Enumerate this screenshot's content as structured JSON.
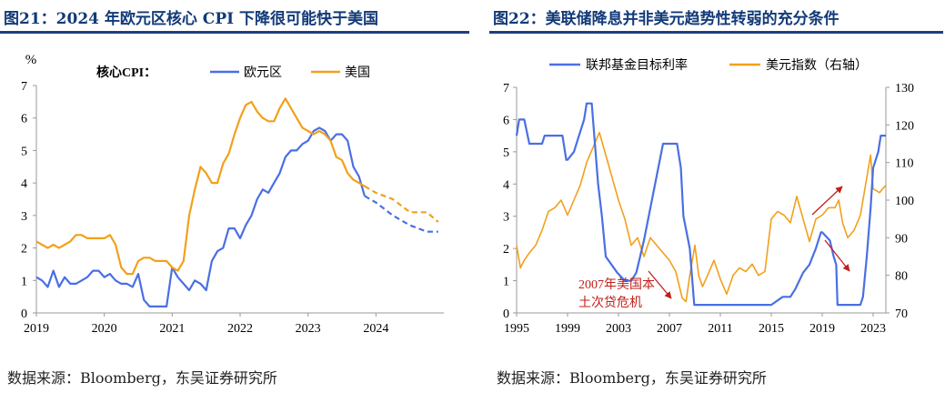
{
  "chart_data": [
    {
      "type": "line",
      "title": "图21：2024 年欧元区核心 CPI 下降很可能快于美国",
      "source": "数据来源：Bloomberg，东吴证券研究所",
      "ylabel": "%",
      "legend_title": "核心CPI：",
      "legend_position": "top",
      "ylim": [
        0,
        7
      ],
      "yticks": [
        "0",
        "1",
        "2",
        "3",
        "4",
        "5",
        "6",
        "7"
      ],
      "xlim": [
        2019,
        2025
      ],
      "xticks": [
        "2019",
        "2020",
        "2021",
        "2022",
        "2023",
        "2024"
      ],
      "grid": false,
      "series": [
        {
          "name": "欧元区",
          "color": "#4a6fe3",
          "x": [
            2019.0,
            2019.083,
            2019.167,
            2019.25,
            2019.333,
            2019.417,
            2019.5,
            2019.583,
            2019.667,
            2019.75,
            2019.833,
            2019.917,
            2020.0,
            2020.083,
            2020.167,
            2020.25,
            2020.333,
            2020.417,
            2020.5,
            2020.583,
            2020.667,
            2020.75,
            2020.833,
            2020.917,
            2021.0,
            2021.083,
            2021.167,
            2021.25,
            2021.333,
            2021.417,
            2021.5,
            2021.583,
            2021.667,
            2021.75,
            2021.833,
            2021.917,
            2022.0,
            2022.083,
            2022.167,
            2022.25,
            2022.333,
            2022.417,
            2022.5,
            2022.583,
            2022.667,
            2022.75,
            2022.833,
            2022.917,
            2023.0,
            2023.083,
            2023.167,
            2023.25,
            2023.333,
            2023.417,
            2023.5,
            2023.583,
            2023.667,
            2023.75,
            2023.833
          ],
          "values": [
            1.1,
            1.0,
            0.8,
            1.3,
            0.8,
            1.1,
            0.9,
            0.9,
            1.0,
            1.1,
            1.3,
            1.3,
            1.1,
            1.2,
            1.0,
            0.9,
            0.9,
            0.8,
            1.2,
            0.4,
            0.2,
            0.2,
            0.2,
            0.2,
            1.4,
            1.1,
            0.9,
            0.7,
            1.0,
            0.9,
            0.7,
            1.6,
            1.9,
            2.0,
            2.6,
            2.6,
            2.3,
            2.7,
            3.0,
            3.5,
            3.8,
            3.7,
            4.0,
            4.3,
            4.8,
            5.0,
            5.0,
            5.2,
            5.3,
            5.6,
            5.7,
            5.6,
            5.3,
            5.5,
            5.5,
            5.3,
            4.5,
            4.2,
            3.6
          ]
        },
        {
          "name": "美国",
          "color": "#f2a01c",
          "x": [
            2019.0,
            2019.083,
            2019.167,
            2019.25,
            2019.333,
            2019.417,
            2019.5,
            2019.583,
            2019.667,
            2019.75,
            2019.833,
            2019.917,
            2020.0,
            2020.083,
            2020.167,
            2020.25,
            2020.333,
            2020.417,
            2020.5,
            2020.583,
            2020.667,
            2020.75,
            2020.833,
            2020.917,
            2021.0,
            2021.083,
            2021.167,
            2021.25,
            2021.333,
            2021.417,
            2021.5,
            2021.583,
            2021.667,
            2021.75,
            2021.833,
            2021.917,
            2022.0,
            2022.083,
            2022.167,
            2022.25,
            2022.333,
            2022.417,
            2022.5,
            2022.583,
            2022.667,
            2022.75,
            2022.833,
            2022.917,
            2023.0,
            2023.083,
            2023.167,
            2023.25,
            2023.333,
            2023.417,
            2023.5,
            2023.583,
            2023.667,
            2023.75,
            2023.833
          ],
          "values": [
            2.2,
            2.1,
            2.0,
            2.1,
            2.0,
            2.1,
            2.2,
            2.4,
            2.4,
            2.3,
            2.3,
            2.3,
            2.3,
            2.4,
            2.1,
            1.4,
            1.2,
            1.2,
            1.6,
            1.7,
            1.7,
            1.6,
            1.6,
            1.6,
            1.4,
            1.3,
            1.6,
            3.0,
            3.8,
            4.5,
            4.3,
            4.0,
            4.0,
            4.6,
            4.9,
            5.5,
            6.0,
            6.4,
            6.5,
            6.2,
            6.0,
            5.9,
            5.9,
            6.3,
            6.6,
            6.3,
            6.0,
            5.7,
            5.6,
            5.5,
            5.6,
            5.5,
            5.3,
            4.8,
            4.7,
            4.3,
            4.1,
            4.0,
            3.9
          ]
        },
        {
          "name": "欧元区",
          "style": "dashed",
          "color": "#4a6fe3",
          "x": [
            2023.833,
            2024.0,
            2024.25,
            2024.5,
            2024.75,
            2024.917
          ],
          "values": [
            3.6,
            3.4,
            3.0,
            2.7,
            2.5,
            2.5
          ]
        },
        {
          "name": "美国",
          "style": "dashed",
          "color": "#f2a01c",
          "x": [
            2023.833,
            2024.0,
            2024.25,
            2024.5,
            2024.75,
            2024.917
          ],
          "values": [
            3.9,
            3.7,
            3.5,
            3.1,
            3.1,
            2.8
          ]
        }
      ]
    },
    {
      "type": "line",
      "title": "图22：美联储降息并非美元趋势性转弱的充分条件",
      "source": "数据来源：Bloomberg，东吴证券研究所",
      "legend_position": "top",
      "ylim": [
        0,
        7
      ],
      "yticks": [
        "0",
        "1",
        "2",
        "3",
        "4",
        "5",
        "6",
        "7"
      ],
      "y2lim": [
        70,
        130
      ],
      "y2ticks": [
        "70",
        "80",
        "90",
        "100",
        "110",
        "120",
        "130"
      ],
      "xlim": [
        1995,
        2024
      ],
      "xticks": [
        "1995",
        "1999",
        "2003",
        "2007",
        "2011",
        "2015",
        "2019",
        "2023"
      ],
      "grid": false,
      "annotation": [
        "2007年美国本",
        "土次贷危机"
      ],
      "series": [
        {
          "name": "联邦基金目标利率",
          "axis": "left",
          "color": "#4a6fe3",
          "x": [
            1995.0,
            1995.2,
            1995.6,
            1996.0,
            1997.0,
            1997.2,
            1998.0,
            1998.6,
            1998.9,
            1999.0,
            1999.5,
            1999.9,
            2000.3,
            2000.5,
            2000.9,
            2001.1,
            2001.4,
            2001.7,
            2002.0,
            2002.9,
            2003.5,
            2004.0,
            2004.4,
            2005.0,
            2005.5,
            2006.0,
            2006.5,
            2007.0,
            2007.6,
            2007.9,
            2008.1,
            2008.6,
            2008.95,
            2009.5,
            2011.0,
            2013.0,
            2015.0,
            2015.9,
            2016.5,
            2016.9,
            2017.5,
            2018.0,
            2018.5,
            2018.9,
            2019.0,
            2019.6,
            2019.9,
            2020.1,
            2020.2,
            2021.0,
            2022.0,
            2022.2,
            2022.5,
            2022.8,
            2023.0,
            2023.4,
            2023.6,
            2024.0
          ],
          "values": [
            5.5,
            6.0,
            6.0,
            5.25,
            5.25,
            5.5,
            5.5,
            5.5,
            4.75,
            4.75,
            5.0,
            5.5,
            6.0,
            6.5,
            6.5,
            5.5,
            4.0,
            3.0,
            1.75,
            1.25,
            1.0,
            1.0,
            1.25,
            2.25,
            3.25,
            4.25,
            5.25,
            5.25,
            5.25,
            4.5,
            3.0,
            2.0,
            0.25,
            0.25,
            0.25,
            0.25,
            0.25,
            0.5,
            0.5,
            0.75,
            1.25,
            1.5,
            2.0,
            2.5,
            2.5,
            2.25,
            1.75,
            1.5,
            0.25,
            0.25,
            0.25,
            0.5,
            1.75,
            3.25,
            4.5,
            5.0,
            5.5,
            5.5
          ]
        },
        {
          "name": "美元指数（右轴）",
          "axis": "right",
          "color": "#f2a01c",
          "x": [
            1995.0,
            1995.3,
            1995.6,
            1996.0,
            1996.5,
            1997.0,
            1997.5,
            1998.0,
            1998.5,
            1999.0,
            1999.5,
            2000.0,
            2000.5,
            2001.0,
            2001.5,
            2002.0,
            2002.5,
            2003.0,
            2003.5,
            2004.0,
            2004.5,
            2005.0,
            2005.5,
            2006.0,
            2006.5,
            2007.0,
            2007.5,
            2008.0,
            2008.3,
            2008.6,
            2009.0,
            2009.3,
            2009.6,
            2010.0,
            2010.5,
            2011.0,
            2011.5,
            2012.0,
            2012.5,
            2013.0,
            2013.5,
            2014.0,
            2014.5,
            2015.0,
            2015.5,
            2016.0,
            2016.5,
            2017.0,
            2017.5,
            2018.0,
            2018.5,
            2019.0,
            2019.5,
            2020.0,
            2020.3,
            2020.6,
            2021.0,
            2021.5,
            2022.0,
            2022.5,
            2022.8,
            2023.0,
            2023.5,
            2024.0
          ],
          "values": [
            88,
            82,
            84,
            86,
            88,
            92,
            97,
            98,
            100,
            96,
            100,
            104,
            110,
            114,
            118,
            112,
            106,
            100,
            95,
            88,
            90,
            85,
            90,
            88,
            86,
            84,
            81,
            74,
            73,
            80,
            88,
            80,
            77,
            80,
            84,
            79,
            75,
            80,
            82,
            81,
            83,
            80,
            81,
            95,
            97,
            96,
            94,
            101,
            95,
            89,
            95,
            96,
            98,
            98,
            100,
            94,
            90,
            92,
            96,
            106,
            112,
            103,
            102,
            104
          ]
        }
      ]
    }
  ]
}
